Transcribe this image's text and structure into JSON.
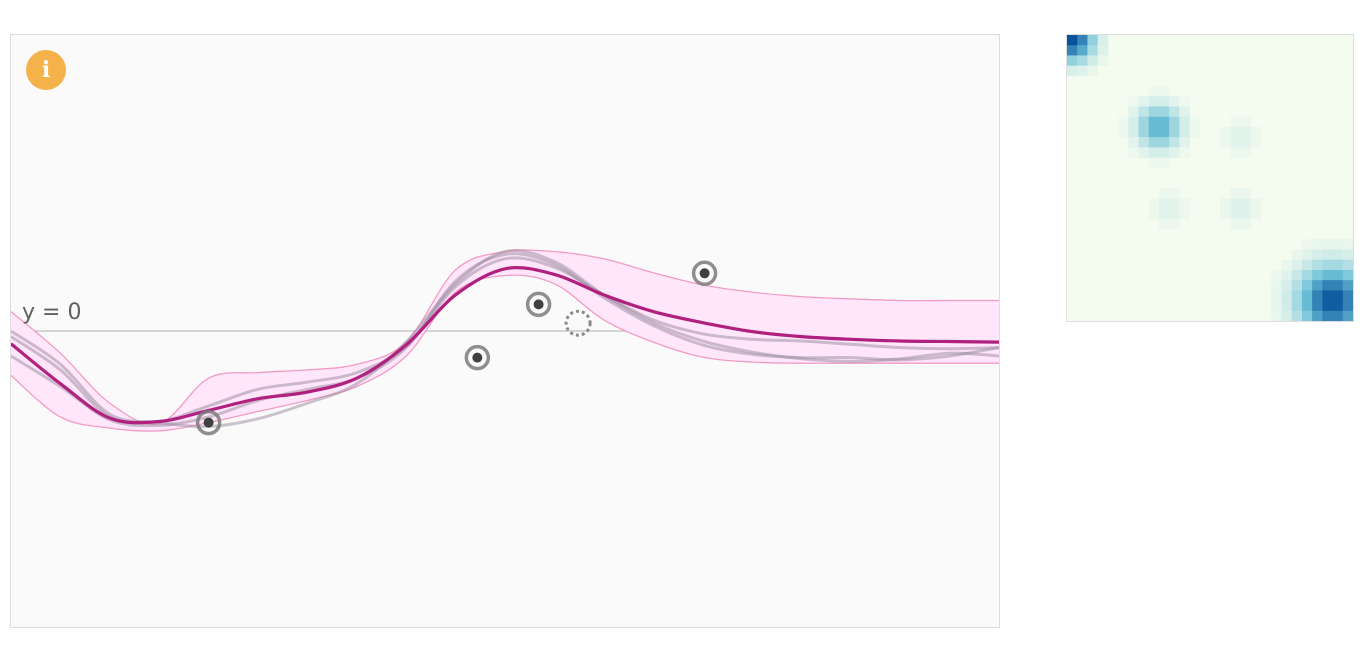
{
  "plot": {
    "baseline_label": "y = 0",
    "info_icon_glyph": "i",
    "colors": {
      "mean": "#b0207f",
      "band_fill": "#ffe6fb",
      "band_stroke": "#f29bc4",
      "samples": "#9a8a9d",
      "points": "#7a7a7a",
      "baseline": "#c8c8c8",
      "info": "#f6b24a"
    }
  },
  "chart_data": {
    "type": "line",
    "xlim": [
      -5,
      5
    ],
    "ylim": [
      -3,
      3
    ],
    "grid": false,
    "x": [
      -5.0,
      -4.5,
      -4.0,
      -3.5,
      -3.0,
      -2.5,
      -2.0,
      -1.5,
      -1.0,
      -0.5,
      0.0,
      0.5,
      1.0,
      1.5,
      2.0,
      2.5,
      3.0,
      3.5,
      4.0,
      4.5,
      5.0
    ],
    "series": [
      {
        "role": "mean",
        "values": [
          -0.23,
          -0.95,
          -1.57,
          -1.63,
          -1.43,
          -1.22,
          -1.1,
          -0.85,
          -0.25,
          0.65,
          1.12,
          1.02,
          0.65,
          0.35,
          0.15,
          -0.01,
          -0.1,
          -0.15,
          -0.18,
          -0.19,
          -0.2
        ]
      },
      {
        "role": "upper-bound",
        "values": [
          0.35,
          -0.4,
          -1.3,
          -1.67,
          -0.85,
          -0.75,
          -0.7,
          -0.6,
          -0.2,
          1.1,
          1.43,
          1.43,
          1.3,
          1.05,
          0.83,
          0.7,
          0.62,
          0.58,
          0.55,
          0.55,
          0.55
        ]
      },
      {
        "role": "lower-bound",
        "values": [
          -0.8,
          -1.55,
          -1.75,
          -1.8,
          -1.65,
          -1.45,
          -1.25,
          -1.0,
          -0.45,
          0.7,
          1.0,
          0.85,
          0.2,
          -0.2,
          -0.47,
          -0.56,
          -0.58,
          -0.58,
          -0.58,
          -0.58,
          -0.58
        ]
      },
      {
        "role": "sample",
        "values": [
          -0.1,
          -0.7,
          -1.55,
          -1.63,
          -1.35,
          -1.05,
          -0.92,
          -0.75,
          -0.28,
          0.8,
          1.3,
          1.15,
          0.65,
          0.2,
          -0.05,
          -0.15,
          -0.18,
          -0.24,
          -0.3,
          -0.32,
          -0.3
        ]
      },
      {
        "role": "sample",
        "values": [
          -0.45,
          -1.0,
          -1.6,
          -1.7,
          -1.55,
          -1.25,
          -1.05,
          -0.85,
          -0.3,
          0.9,
          1.38,
          1.2,
          0.6,
          0.1,
          -0.25,
          -0.42,
          -0.48,
          -0.48,
          -0.52,
          -0.45,
          -0.3
        ]
      },
      {
        "role": "sample",
        "values": [
          0.0,
          -0.6,
          -1.5,
          -1.65,
          -1.72,
          -1.58,
          -1.3,
          -0.95,
          -0.2,
          0.85,
          1.43,
          1.25,
          0.65,
          0.15,
          -0.18,
          -0.38,
          -0.5,
          -0.55,
          -0.5,
          -0.4,
          -0.45
        ]
      }
    ],
    "observations": [
      {
        "x": -3.0,
        "y": -1.65
      },
      {
        "x": -0.28,
        "y": -0.48
      },
      {
        "x": 0.34,
        "y": 0.48
      },
      {
        "x": 2.02,
        "y": 1.04
      }
    ],
    "cursor": {
      "x": 0.74,
      "y": 0.14
    }
  },
  "covariance_matrix": {
    "size": 28,
    "colors": {
      "low": "#f4fbef",
      "mid": "#6ec2d8",
      "high": "#08519c"
    },
    "blobs": [
      {
        "row": 0.5,
        "col": 0.5,
        "strength": 1.0,
        "spread": 2.0
      },
      {
        "row": 9.0,
        "col": 9.0,
        "strength": 0.6,
        "spread": 2.0
      },
      {
        "row": 26.0,
        "col": 26.0,
        "strength": 1.0,
        "spread": 3.2
      },
      {
        "row": 10.0,
        "col": 17.0,
        "strength": 0.08,
        "spread": 1.6
      },
      {
        "row": 17.0,
        "col": 10.0,
        "strength": 0.08,
        "spread": 1.6
      },
      {
        "row": 17.0,
        "col": 17.0,
        "strength": 0.1,
        "spread": 1.5
      }
    ]
  }
}
